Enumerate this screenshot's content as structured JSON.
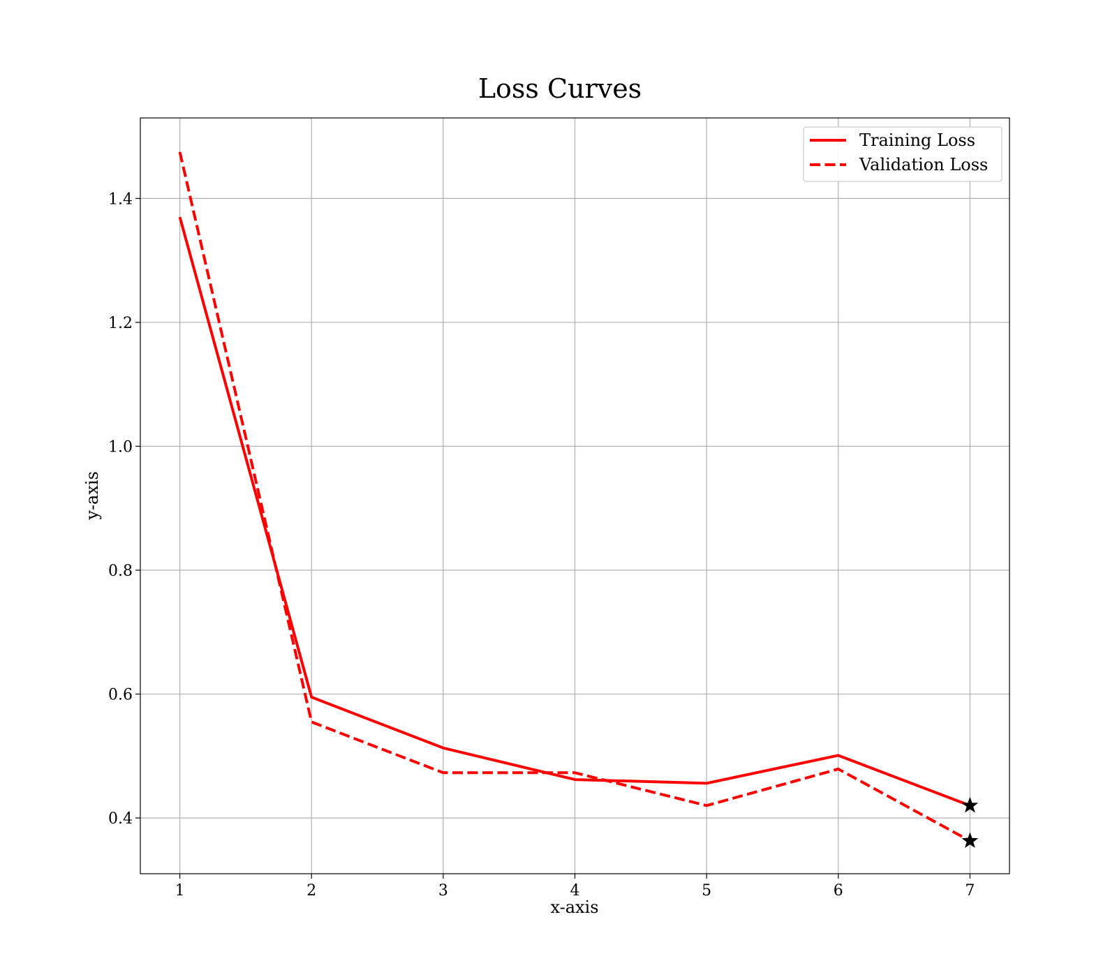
{
  "chart_data": {
    "type": "line",
    "title": "Loss Curves",
    "xlabel": "x-axis",
    "ylabel": "y-axis",
    "x": [
      1,
      2,
      3,
      4,
      5,
      6,
      7
    ],
    "xlim": [
      0.7,
      7.3
    ],
    "ylim": [
      0.31,
      1.53
    ],
    "xticks": [
      1,
      2,
      3,
      4,
      5,
      6,
      7
    ],
    "yticks": [
      0.4,
      0.6,
      0.8,
      1.0,
      1.2,
      1.4
    ],
    "xtick_labels": [
      "1",
      "2",
      "3",
      "4",
      "5",
      "6",
      "7"
    ],
    "ytick_labels": [
      "0.4",
      "0.6",
      "0.8",
      "1.0",
      "1.2",
      "1.4"
    ],
    "grid": true,
    "legend_position": "top-right",
    "series": [
      {
        "name": "Training Loss",
        "values": [
          1.37,
          0.595,
          0.513,
          0.462,
          0.456,
          0.501,
          0.42
        ],
        "color": "#ff0000",
        "linestyle": "solid",
        "end_marker": "star"
      },
      {
        "name": "Validation Loss",
        "values": [
          1.475,
          0.555,
          0.473,
          0.473,
          0.42,
          0.479,
          0.363
        ],
        "color": "#ff0000",
        "linestyle": "dashed",
        "end_marker": "star"
      }
    ],
    "marker_color": "#000000"
  }
}
